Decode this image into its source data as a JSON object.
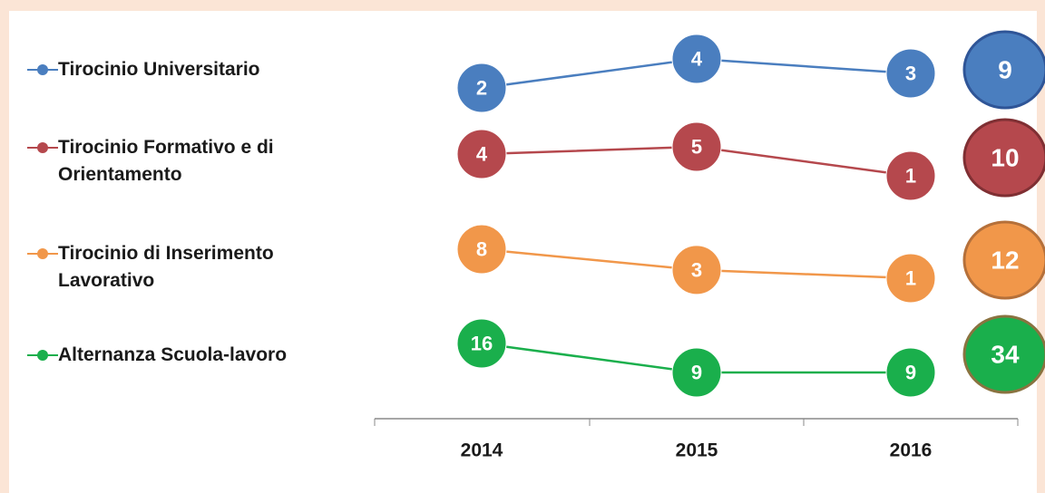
{
  "chart_data": {
    "type": "line",
    "categories": [
      "2014",
      "2015",
      "2016"
    ],
    "series": [
      {
        "name": "Tirocinio Universitario",
        "color": "#4a7ebf",
        "values": [
          2,
          4,
          3
        ],
        "total": 9
      },
      {
        "name": "Tirocinio Formativo e di Orientamento",
        "color": "#b5484d",
        "values": [
          4,
          5,
          1
        ],
        "total": 10
      },
      {
        "name": "Tirocinio di Inserimento Lavorativo",
        "color": "#f1974a",
        "values": [
          8,
          3,
          1
        ],
        "total": 12
      },
      {
        "name": "Alternanza Scuola-lavoro",
        "color": "#1aaf4c",
        "values": [
          16,
          9,
          9
        ],
        "total": 34
      }
    ]
  }
}
